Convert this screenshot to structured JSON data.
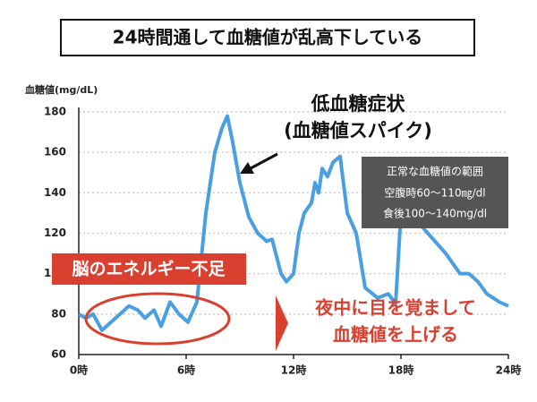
{
  "chart_data": {
    "type": "line",
    "title": "24時間通して血糖値が乱高下している",
    "y_label": "血糖値(mg/dL)",
    "x": [
      0,
      0.4,
      0.8,
      1.3,
      1.8,
      2.3,
      2.8,
      3.3,
      3.7,
      4.2,
      4.6,
      5.1,
      5.6,
      6.1,
      6.6,
      7.1,
      7.6,
      8.0,
      8.3,
      8.6,
      9.0,
      9.5,
      10.0,
      10.5,
      10.8,
      11.3,
      11.6,
      12.0,
      12.3,
      12.6,
      13.0,
      13.2,
      13.4,
      13.6,
      13.9,
      14.2,
      14.6,
      15.0,
      15.5,
      16.0,
      16.7,
      17.3,
      17.7,
      18.0,
      18.7,
      19.5,
      20.5,
      21.3,
      21.8,
      22.3,
      22.8,
      23.5,
      24
    ],
    "values": [
      80,
      78,
      80,
      72,
      76,
      80,
      84,
      82,
      78,
      82,
      74,
      86,
      80,
      76,
      86,
      130,
      160,
      172,
      178,
      165,
      145,
      128,
      120,
      116,
      117,
      100,
      96,
      100,
      120,
      130,
      135,
      145,
      140,
      152,
      148,
      155,
      158,
      130,
      120,
      93,
      88,
      90,
      85,
      130,
      128,
      120,
      110,
      100,
      100,
      96,
      90,
      86,
      84
    ],
    "color": "#4a9fe3",
    "ylim": [
      60,
      180
    ],
    "yticks": [
      60,
      80,
      100,
      120,
      140,
      160,
      180
    ],
    "xlim": [
      0,
      24
    ],
    "xticks": [
      {
        "value": 0,
        "label": "0時"
      },
      {
        "value": 6,
        "label": "6時"
      },
      {
        "value": 12,
        "label": "12時"
      },
      {
        "value": 18,
        "label": "18時"
      },
      {
        "value": 24,
        "label": "24時"
      }
    ],
    "grid": true,
    "annotations": [
      "低血糖症状",
      "(血糖値スパイク)",
      "正常な血糖値の範囲",
      "空腹時60〜110㎎/dl",
      "食後100〜140mg/dl",
      "脳のエネルギー不足",
      "夜中に目を覚まして",
      "血糖値を上げる"
    ]
  }
}
